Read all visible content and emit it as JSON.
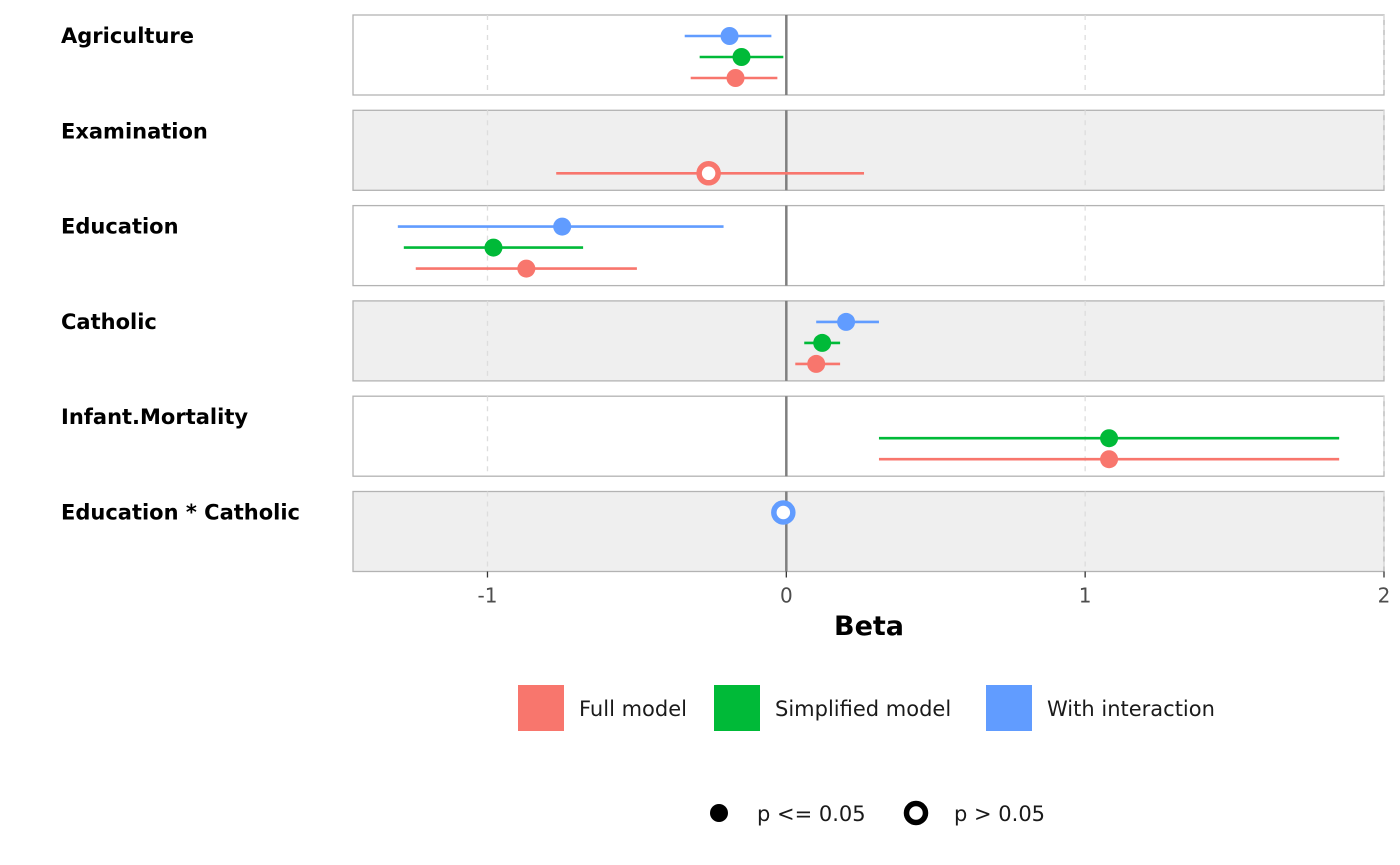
{
  "chart_data": {
    "type": "forest",
    "xlabel": "Beta",
    "xlim": [
      -1.45,
      2.0
    ],
    "x_ticks": [
      -1,
      0,
      1,
      2
    ],
    "x_tick_labels": [
      "-1",
      "0",
      "1",
      "2"
    ],
    "reference_line": 0,
    "grid": "vertical dashed",
    "panel_shading": "alternating",
    "terms": [
      "Agriculture",
      "Examination",
      "Education",
      "Catholic",
      "Infant.Mortality",
      "Education * Catholic"
    ],
    "series": [
      {
        "name": "Full model",
        "color": "#F8766D",
        "points": [
          {
            "term": "Agriculture",
            "estimate": -0.17,
            "low": -0.32,
            "high": -0.03,
            "significant": true
          },
          {
            "term": "Examination",
            "estimate": -0.26,
            "low": -0.77,
            "high": 0.26,
            "significant": false
          },
          {
            "term": "Education",
            "estimate": -0.87,
            "low": -1.24,
            "high": -0.5,
            "significant": true
          },
          {
            "term": "Catholic",
            "estimate": 0.1,
            "low": 0.03,
            "high": 0.18,
            "significant": true
          },
          {
            "term": "Infant.Mortality",
            "estimate": 1.08,
            "low": 0.31,
            "high": 1.85,
            "significant": true
          }
        ]
      },
      {
        "name": "Simplified model",
        "color": "#00BA38",
        "points": [
          {
            "term": "Agriculture",
            "estimate": -0.15,
            "low": -0.29,
            "high": -0.01,
            "significant": true
          },
          {
            "term": "Education",
            "estimate": -0.98,
            "low": -1.28,
            "high": -0.68,
            "significant": true
          },
          {
            "term": "Catholic",
            "estimate": 0.12,
            "low": 0.06,
            "high": 0.18,
            "significant": true
          },
          {
            "term": "Infant.Mortality",
            "estimate": 1.08,
            "low": 0.31,
            "high": 1.85,
            "significant": true
          }
        ]
      },
      {
        "name": "With interaction",
        "color": "#619CFF",
        "points": [
          {
            "term": "Agriculture",
            "estimate": -0.19,
            "low": -0.34,
            "high": -0.05,
            "significant": true
          },
          {
            "term": "Education",
            "estimate": -0.75,
            "low": -1.3,
            "high": -0.21,
            "significant": true
          },
          {
            "term": "Catholic",
            "estimate": 0.2,
            "low": 0.1,
            "high": 0.31,
            "significant": true
          },
          {
            "term": "Education * Catholic",
            "estimate": -0.01,
            "low": -0.01,
            "high": -0.01,
            "significant": false
          }
        ]
      }
    ],
    "legend": {
      "placement": "bottom",
      "models": [
        "Full model",
        "Simplified model",
        "With interaction"
      ],
      "significance": [
        {
          "label": "p <= 0.05",
          "filled": true
        },
        {
          "label": "p > 0.05",
          "filled": false
        }
      ]
    }
  }
}
